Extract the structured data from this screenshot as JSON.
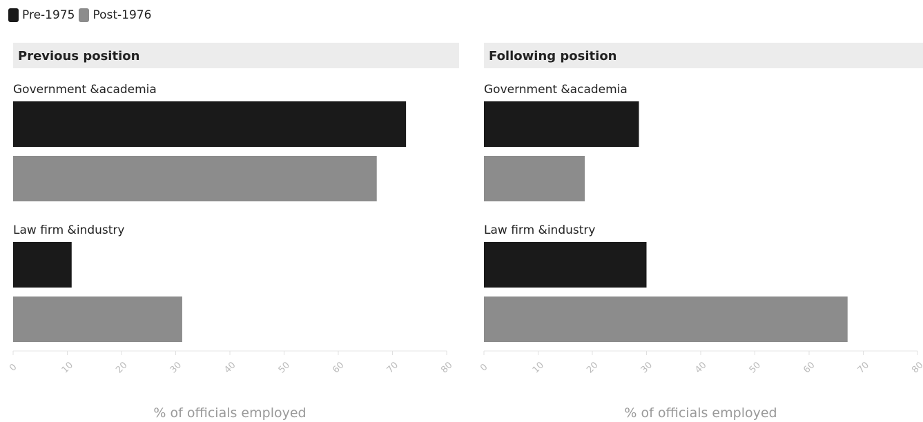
{
  "legend": {
    "items": [
      {
        "label": "Pre-1975",
        "color": "#1a1a1a"
      },
      {
        "label": "Post-1976",
        "color": "#8c8c8c"
      }
    ]
  },
  "chart_data": [
    {
      "type": "bar",
      "orientation": "horizontal",
      "title": "Previous position",
      "xlabel": "% of officials employed",
      "xlim": [
        0,
        80
      ],
      "ticks": [
        "0",
        "10",
        "20",
        "30",
        "40",
        "50",
        "60",
        "70",
        "80"
      ],
      "categories": [
        "Government &academia",
        "Law firm &industry"
      ],
      "series": [
        {
          "name": "Pre-1975",
          "values": [
            72.5,
            10.8
          ]
        },
        {
          "name": "Post-1976",
          "values": [
            67.1,
            31.2
          ]
        }
      ]
    },
    {
      "type": "bar",
      "orientation": "horizontal",
      "title": "Following position",
      "xlabel": "% of officials employed",
      "xlim": [
        0,
        80
      ],
      "ticks": [
        "0",
        "10",
        "20",
        "30",
        "40",
        "50",
        "60",
        "70",
        "80"
      ],
      "categories": [
        "Government &academia",
        "Law firm &industry"
      ],
      "series": [
        {
          "name": "Pre-1975",
          "values": [
            28.6,
            30.0
          ]
        },
        {
          "name": "Post-1976",
          "values": [
            18.6,
            67.1
          ]
        }
      ]
    }
  ]
}
